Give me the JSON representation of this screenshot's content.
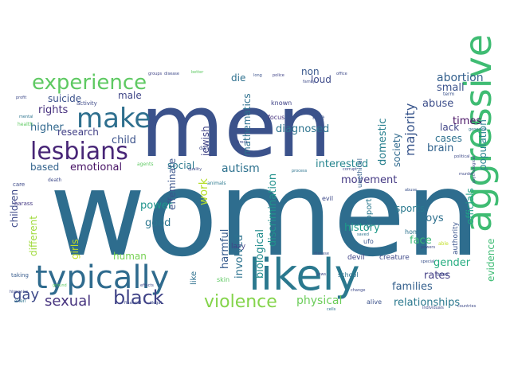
{
  "words": [
    {
      "text": "women",
      "color": "#2e6d8e"
    },
    {
      "text": "men",
      "color": "#3b528b"
    },
    {
      "text": "likely",
      "color": "#2a788e"
    },
    {
      "text": "typically",
      "color": "#2f6b8e"
    },
    {
      "text": "aggressive",
      "color": "#3fbc73"
    },
    {
      "text": "lesbians",
      "color": "#482677"
    },
    {
      "text": "make",
      "color": "#2e6f8e"
    },
    {
      "text": "experience",
      "color": "#5ec962"
    },
    {
      "text": "black",
      "color": "#404387"
    },
    {
      "text": "violence",
      "color": "#84d44b"
    },
    {
      "text": "sexual",
      "color": "#46337e"
    },
    {
      "text": "gay",
      "color": "#3e4a89"
    },
    {
      "text": "majority",
      "color": "#39568c"
    },
    {
      "text": "physical",
      "color": "#6ccd5a"
    },
    {
      "text": "relationships",
      "color": "#2a788e"
    },
    {
      "text": "officials",
      "color": "#1fa187"
    },
    {
      "text": "population",
      "color": "#26828e"
    },
    {
      "text": "evidence",
      "color": "#3dbc74"
    },
    {
      "text": "abortion",
      "color": "#34608d"
    },
    {
      "text": "domestic",
      "color": "#277f8e"
    },
    {
      "text": "society",
      "color": "#306a8e"
    },
    {
      "text": "mathematics",
      "color": "#2d708e"
    },
    {
      "text": "discrimination",
      "color": "#21918c"
    },
    {
      "text": "biological",
      "color": "#228c8d"
    },
    {
      "text": "involved",
      "color": "#2c728e"
    },
    {
      "text": "harmful",
      "color": "#375b8d"
    },
    {
      "text": "effeminate",
      "color": "#3a548c"
    },
    {
      "text": "jewish",
      "color": "#414487"
    },
    {
      "text": "work",
      "color": "#b5de2b"
    },
    {
      "text": "diagnosed",
      "color": "#2c738e"
    },
    {
      "text": "autism",
      "color": "#2d718e"
    },
    {
      "text": "interested",
      "color": "#25858e"
    },
    {
      "text": "movement",
      "color": "#443983"
    },
    {
      "text": "abuse",
      "color": "#3d4e8a"
    },
    {
      "text": "brain",
      "color": "#32648e"
    },
    {
      "text": "cases",
      "color": "#2d708e"
    },
    {
      "text": "lack",
      "color": "#404588"
    },
    {
      "text": "times",
      "color": "#471063"
    },
    {
      "text": "small",
      "color": "#3b528b"
    },
    {
      "text": "history",
      "color": "#1f9a8a"
    },
    {
      "text": "face",
      "color": "#3aba76"
    },
    {
      "text": "gender",
      "color": "#26ad81"
    },
    {
      "text": "families",
      "color": "#35608d"
    },
    {
      "text": "rates",
      "color": "#433e85"
    },
    {
      "text": "boys",
      "color": "#2d708e"
    },
    {
      "text": "sports",
      "color": "#29798e"
    },
    {
      "text": "human",
      "color": "#77d153"
    },
    {
      "text": "good",
      "color": "#2a768e"
    },
    {
      "text": "power",
      "color": "#1f948c"
    },
    {
      "text": "children",
      "color": "#3e4989"
    },
    {
      "text": "different",
      "color": "#9fda3a"
    },
    {
      "text": "girls",
      "color": "#c2df23"
    },
    {
      "text": "based",
      "color": "#33638d"
    },
    {
      "text": "emotional",
      "color": "#471365"
    },
    {
      "text": "research",
      "color": "#424086"
    },
    {
      "text": "higher",
      "color": "#31688e"
    },
    {
      "text": "rights",
      "color": "#46307e"
    },
    {
      "text": "suicide",
      "color": "#3b518b"
    },
    {
      "text": "male",
      "color": "#404688"
    },
    {
      "text": "child",
      "color": "#3b528b"
    },
    {
      "text": "social",
      "color": "#2a788e"
    },
    {
      "text": "loud",
      "color": "#3e4a89"
    },
    {
      "text": "non",
      "color": "#38588c"
    },
    {
      "text": "die",
      "color": "#2d708e"
    },
    {
      "text": "seen",
      "color": "#2f6c8e"
    },
    {
      "text": "like",
      "color": "#2d708e"
    },
    {
      "text": "support",
      "color": "#2a788e"
    },
    {
      "text": "lazy",
      "color": "#404387"
    },
    {
      "text": "devil",
      "color": "#414487"
    },
    {
      "text": "creature",
      "color": "#3e4989"
    },
    {
      "text": "alive",
      "color": "#3b528b"
    },
    {
      "text": "school",
      "color": "#2c738e"
    },
    {
      "text": "evil",
      "color": "#3e4a89"
    },
    {
      "text": "ufo",
      "color": "#3a548c"
    },
    {
      "text": "authority",
      "color": "#3a548c"
    },
    {
      "text": "home",
      "color": "#2c728e"
    },
    {
      "text": "skin",
      "color": "#5ec962"
    },
    {
      "text": "focus",
      "color": "#46337e"
    },
    {
      "text": "role",
      "color": "#3b528b"
    },
    {
      "text": "unethical",
      "color": "#35608d"
    },
    {
      "text": "known",
      "color": "#404387"
    },
    {
      "text": "activity",
      "color": "#3e4a89"
    },
    {
      "text": "taking",
      "color": "#375b8d"
    },
    {
      "text": "harass",
      "color": "#443983"
    },
    {
      "text": "care",
      "color": "#3e4a89"
    },
    {
      "text": "alien",
      "color": "#2c738e"
    },
    {
      "text": "dark",
      "color": "#3e4a89"
    },
    {
      "text": "death",
      "color": "#3e4a89"
    },
    {
      "text": "groups",
      "color": "#404387"
    },
    {
      "text": "disease",
      "color": "#3e4a89"
    },
    {
      "text": "better",
      "color": "#5ec962"
    },
    {
      "text": "long",
      "color": "#3b528b"
    },
    {
      "text": "police",
      "color": "#404387"
    },
    {
      "text": "office",
      "color": "#3e4a89"
    },
    {
      "text": "term",
      "color": "#3b528b"
    },
    {
      "text": "genocide",
      "color": "#2c738e"
    },
    {
      "text": "political",
      "color": "#3e4a89"
    },
    {
      "text": "murder",
      "color": "#3e4a89"
    },
    {
      "text": "abuse",
      "color": "#3b528b"
    },
    {
      "text": "agents",
      "color": "#5ec962"
    },
    {
      "text": "quality",
      "color": "#3e4a89"
    },
    {
      "text": "corrupt",
      "color": "#3e4a89"
    },
    {
      "text": "process",
      "color": "#2c738e"
    },
    {
      "text": "direct",
      "color": "#3e4a89"
    },
    {
      "text": "powers",
      "color": "#3e4a89"
    },
    {
      "text": "saved",
      "color": "#2c738e"
    },
    {
      "text": "special",
      "color": "#3b528b"
    },
    {
      "text": "going",
      "color": "#3e4a89"
    },
    {
      "text": "able",
      "color": "#c2df23"
    },
    {
      "text": "animals",
      "color": "#2a788e"
    },
    {
      "text": "countries",
      "color": "#3e4a89"
    },
    {
      "text": "individuals",
      "color": "#3e4a89"
    },
    {
      "text": "cells",
      "color": "#2c738e"
    },
    {
      "text": "ground",
      "color": "#5ec962"
    },
    {
      "text": "effects",
      "color": "#3e4a89"
    },
    {
      "text": "change",
      "color": "#3e4a89"
    },
    {
      "text": "disease",
      "color": "#3b528b"
    },
    {
      "text": "jews",
      "color": "#3e4a89"
    },
    {
      "text": "financial",
      "color": "#3e4a89"
    },
    {
      "text": "illegal",
      "color": "#3e4a89"
    },
    {
      "text": "hispanics",
      "color": "#3e4a89"
    },
    {
      "text": "psychological",
      "color": "#3e4a89"
    },
    {
      "text": "profit",
      "color": "#3e4a89"
    },
    {
      "text": "mental",
      "color": "#2c738e"
    },
    {
      "text": "health",
      "color": "#5ec962"
    },
    {
      "text": "family",
      "color": "#3e4a89"
    }
  ]
}
